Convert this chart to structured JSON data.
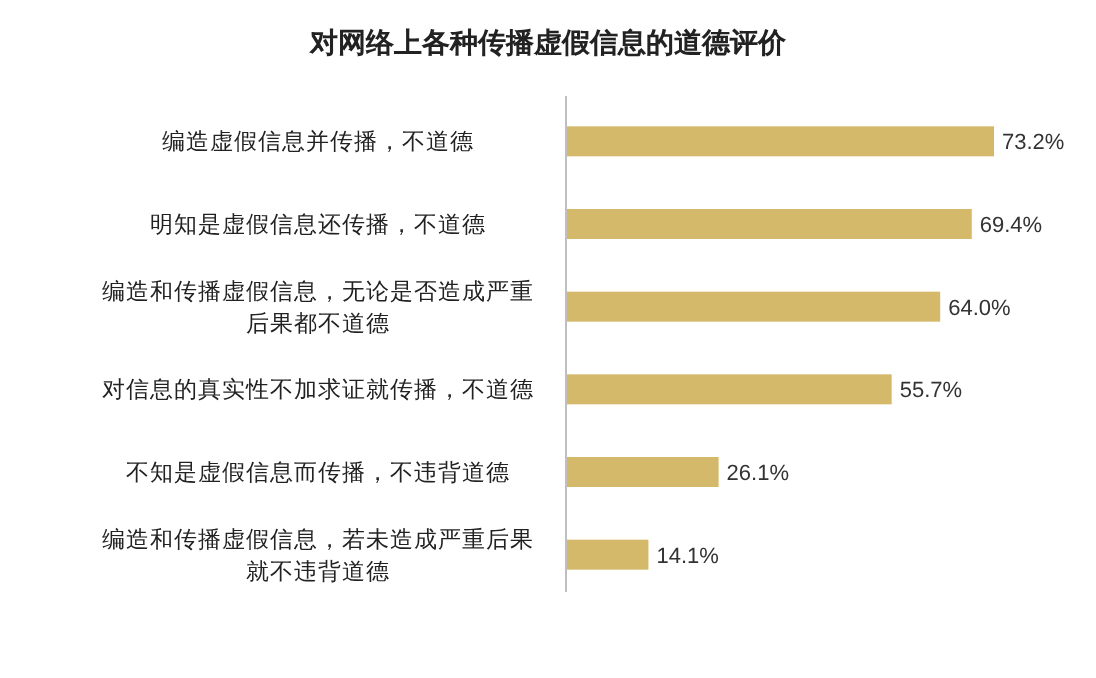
{
  "chart_data": {
    "type": "bar",
    "orientation": "horizontal",
    "title": "对网络上各种传播虚假信息的道德评价",
    "categories": [
      "编造虚假信息并传播，不道德",
      "明知是虚假信息还传播，不道德",
      "编造和传播虚假信息，无论是否造成严重后果都不道德",
      "对信息的真实性不加求证就传播，不道德",
      "不知是虚假信息而传播，不违背道德",
      "编造和传播虚假信息，若未造成严重后果就不违背道德"
    ],
    "values": [
      73.2,
      69.4,
      64.0,
      55.7,
      26.1,
      14.1
    ],
    "value_labels": [
      "73.2%",
      "69.4%",
      "64.0%",
      "55.7%",
      "26.1%",
      "14.1%"
    ],
    "color": "#d4b96a",
    "tick_labels": "y"
  }
}
